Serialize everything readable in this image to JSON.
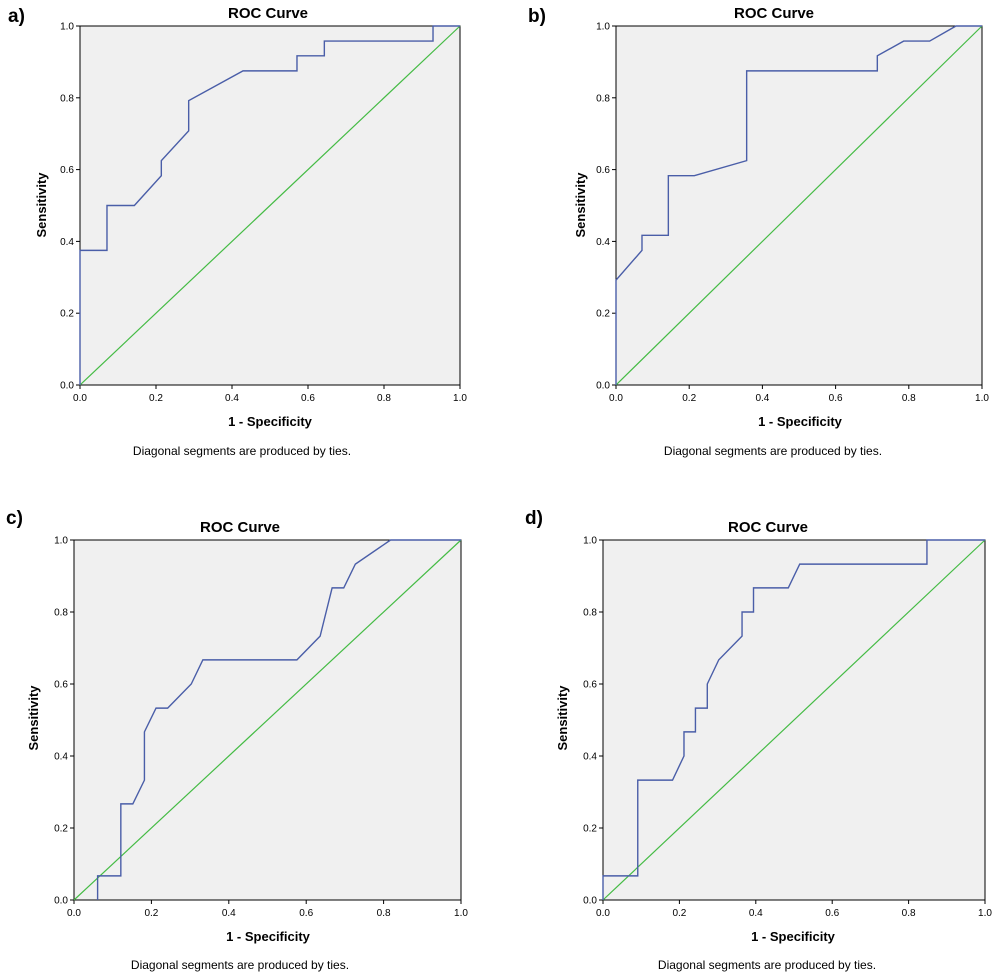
{
  "chart_data": [
    {
      "panel": "a)",
      "type": "line",
      "title": "ROC Curve",
      "xlabel": "1 - Specificity",
      "ylabel": "Sensitivity",
      "xlim": [
        0,
        1
      ],
      "ylim": [
        0,
        1
      ],
      "xticks": [
        "0.0",
        "0.2",
        "0.4",
        "0.6",
        "0.8",
        "1.0"
      ],
      "yticks": [
        "0.0",
        "0.2",
        "0.4",
        "0.6",
        "0.8",
        "1.0"
      ],
      "footnote": "Diagonal segments are produced by ties.",
      "roc_color": "#4a5ea8",
      "reference_color": "#44bb44",
      "x": [
        0,
        0,
        0.071,
        0.071,
        0.143,
        0.214,
        0.214,
        0.286,
        0.286,
        0.429,
        0.571,
        0.571,
        0.643,
        0.643,
        0.929,
        0.929,
        1.0
      ],
      "y": [
        0,
        0.375,
        0.375,
        0.5,
        0.5,
        0.583,
        0.625,
        0.708,
        0.792,
        0.875,
        0.875,
        0.917,
        0.917,
        0.958,
        0.958,
        1.0,
        1.0
      ]
    },
    {
      "panel": "b)",
      "type": "line",
      "title": "ROC Curve",
      "xlabel": "1 - Specificity",
      "ylabel": "Sensitivity",
      "xlim": [
        0,
        1
      ],
      "ylim": [
        0,
        1
      ],
      "xticks": [
        "0.0",
        "0.2",
        "0.4",
        "0.6",
        "0.8",
        "1.0"
      ],
      "yticks": [
        "0.0",
        "0.2",
        "0.4",
        "0.6",
        "0.8",
        "1.0"
      ],
      "footnote": "Diagonal segments are produced by ties.",
      "roc_color": "#4a5ea8",
      "reference_color": "#44bb44",
      "x": [
        0,
        0,
        0.071,
        0.071,
        0.143,
        0.143,
        0.214,
        0.357,
        0.357,
        0.714,
        0.714,
        0.786,
        0.857,
        0.929,
        1.0
      ],
      "y": [
        0,
        0.292,
        0.375,
        0.417,
        0.417,
        0.583,
        0.583,
        0.625,
        0.875,
        0.875,
        0.917,
        0.958,
        0.958,
        1.0,
        1.0
      ]
    },
    {
      "panel": "c)",
      "type": "line",
      "title": "ROC Curve",
      "xlabel": "1 - Specificity",
      "ylabel": "Sensitivity",
      "xlim": [
        0,
        1
      ],
      "ylim": [
        0,
        1
      ],
      "xticks": [
        "0.0",
        "0.2",
        "0.4",
        "0.6",
        "0.8",
        "1.0"
      ],
      "yticks": [
        "0.0",
        "0.2",
        "0.4",
        "0.6",
        "0.8",
        "1.0"
      ],
      "footnote": "Diagonal segments are produced by ties.",
      "roc_color": "#4a5ea8",
      "reference_color": "#44bb44",
      "x": [
        0.061,
        0.061,
        0.121,
        0.121,
        0.152,
        0.182,
        0.182,
        0.212,
        0.242,
        0.303,
        0.333,
        0.576,
        0.636,
        0.667,
        0.697,
        0.727,
        0.818,
        1.0
      ],
      "y": [
        0,
        0.067,
        0.067,
        0.267,
        0.267,
        0.333,
        0.467,
        0.533,
        0.533,
        0.6,
        0.667,
        0.667,
        0.733,
        0.867,
        0.867,
        0.933,
        1.0,
        1.0
      ]
    },
    {
      "panel": "d)",
      "type": "line",
      "title": "ROC Curve",
      "xlabel": "1 - Specificity",
      "ylabel": "Sensitivity",
      "xlim": [
        0,
        1
      ],
      "ylim": [
        0,
        1
      ],
      "xticks": [
        "0.0",
        "0.2",
        "0.4",
        "0.6",
        "0.8",
        "1.0"
      ],
      "yticks": [
        "0.0",
        "0.2",
        "0.4",
        "0.6",
        "0.8",
        "1.0"
      ],
      "footnote": "Diagonal segments are produced by ties.",
      "roc_color": "#4a5ea8",
      "reference_color": "#44bb44",
      "x": [
        0,
        0,
        0.091,
        0.091,
        0.182,
        0.212,
        0.212,
        0.242,
        0.242,
        0.273,
        0.273,
        0.303,
        0.364,
        0.364,
        0.394,
        0.394,
        0.485,
        0.515,
        0.848,
        0.848,
        1.0
      ],
      "y": [
        0,
        0.067,
        0.067,
        0.333,
        0.333,
        0.4,
        0.467,
        0.467,
        0.533,
        0.533,
        0.6,
        0.667,
        0.733,
        0.8,
        0.8,
        0.867,
        0.867,
        0.933,
        0.933,
        1.0,
        1.0
      ]
    }
  ]
}
